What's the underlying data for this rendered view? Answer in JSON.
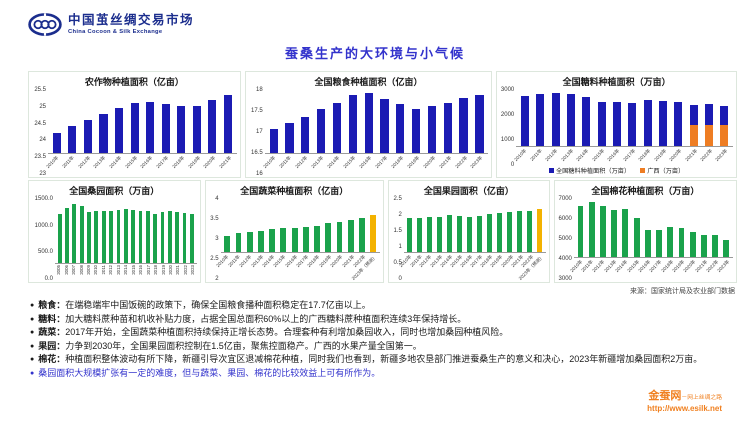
{
  "header": {
    "brand_cn": "中国茧丝绸交易市场",
    "brand_en": "China  Cocoon & Silk  Exchange"
  },
  "title": "蚕桑生产的大环境与小气候",
  "colors": {
    "blue_bar": "#1b1bb3",
    "green_bar": "#1aa24b",
    "orange_bar": "#ee7d23",
    "yellow_bar": "#f3b200",
    "title_blue": "#3333cc",
    "brand_navy": "#1b2d8d",
    "footer_orange": "#f08020"
  },
  "source_note": "来源：国家统计局及农业部门数据",
  "bullets": [
    {
      "label": "粮食：",
      "text": "在端稳端牢中国饭碗的政策下，确保全国粮食播种面积稳定在17.7亿亩以上。",
      "highlight": false
    },
    {
      "label": "糖料：",
      "text": "加大糖料蔗种苗和机收补贴力度，占据全国总面积60%以上的广西糖料蔗种植面积连续3年保持增长。",
      "highlight": false
    },
    {
      "label": "蔬菜：",
      "text": "2017年开始，全国蔬菜种植面积持续保持正增长态势。合理套种有利增加桑园收入，同时也增加桑园种植风险。",
      "highlight": false
    },
    {
      "label": "果园：",
      "text": "力争到2030年，全国果园面积控制在1.5亿亩，聚焦控面稳产。广西的水果产量全国第一。",
      "highlight": false
    },
    {
      "label": "棉花：",
      "text": "种植面积整体波动有所下降，新疆引导次宜区退减棉花种植，同时我们也看到，新疆多地农垦部门推进蚕桑生产的意义和决心，2023年新疆增加桑园面积2万亩。",
      "highlight": false
    },
    {
      "label": "",
      "text": "桑园面积大规模扩张有一定的难度，但与蔬菜、果园、棉花的比较效益上可有所作为。",
      "highlight": true
    }
  ],
  "footer": {
    "site_name": "金蚕网",
    "site_tagline": "－网上丝绸之路",
    "site_url": "http://www.esilk.net"
  },
  "chart_data": [
    {
      "type": "bar",
      "title": "农作物种植面积（亿亩）",
      "categories": [
        "2010年",
        "2011年",
        "2012年",
        "2013年",
        "2014年",
        "2015年",
        "2016年",
        "2017年",
        "2018年",
        "2019年",
        "2020年",
        "2021年"
      ],
      "values": [
        23.8,
        24.07,
        24.3,
        24.55,
        24.78,
        25.0,
        25.03,
        24.95,
        24.88,
        24.88,
        25.1,
        25.3
      ],
      "ylim": [
        23,
        25.5
      ],
      "yticks": [
        "23",
        "23.5",
        "24",
        "24.5",
        "25",
        "25.5"
      ],
      "bar_color": "#1b1bb3",
      "layout": {
        "flex": 212,
        "yaxis_width": 16,
        "xaxis_height": 20
      }
    },
    {
      "type": "bar",
      "title": "全国粮食种植面积（亿亩）",
      "categories": [
        "2010年",
        "2011年",
        "2012年",
        "2013年",
        "2014年",
        "2015年",
        "2016年",
        "2017年",
        "2018年",
        "2019年",
        "2020年",
        "2021年",
        "2022年",
        "2023年"
      ],
      "values": [
        16.75,
        16.95,
        17.15,
        17.4,
        17.6,
        17.85,
        17.9,
        17.7,
        17.55,
        17.4,
        17.5,
        17.6,
        17.75,
        17.85
      ],
      "ylim": [
        16,
        18
      ],
      "yticks": [
        "16",
        "16.5",
        "17",
        "17.5",
        "18"
      ],
      "bar_color": "#1b1bb3",
      "layout": {
        "flex": 248,
        "yaxis_width": 16,
        "xaxis_height": 20
      }
    },
    {
      "type": "stacked-bar",
      "title": "全国糖料种植面积（万亩）",
      "categories": [
        "2010年",
        "2011年",
        "2012年",
        "2013年",
        "2014年",
        "2015年",
        "2016年",
        "2017年",
        "2018年",
        "2019年",
        "2020年",
        "2021年",
        "2022年",
        "2023年"
      ],
      "values": [
        2700,
        2760,
        2840,
        2760,
        2620,
        2360,
        2340,
        2330,
        2440,
        2420,
        2380,
        2210,
        2230,
        2160
      ],
      "overlay": {
        "name": "广西（万亩）",
        "color": "#ee7d23",
        "values": [
          0,
          0,
          0,
          0,
          0,
          0,
          0,
          0,
          0,
          0,
          0,
          1100,
          1140,
          1100
        ]
      },
      "ylim": [
        0,
        3000
      ],
      "yticks": [
        "0",
        "1000",
        "2000",
        "3000"
      ],
      "bar_color": "#1b1bb3",
      "legend": [
        {
          "label": "全国糖料种植面积（万亩）",
          "color": "#1b1bb3"
        },
        {
          "label": "广西（万亩）",
          "color": "#ee7d23"
        }
      ],
      "legend_position": "bottom",
      "layout": {
        "flex": 241,
        "yaxis_width": 16,
        "xaxis_height": 18
      }
    },
    {
      "type": "bar",
      "title": "全国桑园面积（万亩）",
      "categories": [
        "2005",
        "2006",
        "2007",
        "2008",
        "2009",
        "2010",
        "2011",
        "2012",
        "2013",
        "2014",
        "2015",
        "2016",
        "2017",
        "2018",
        "2019",
        "2020",
        "2021",
        "2022",
        "2023"
      ],
      "values": [
        1160,
        1290,
        1380,
        1330,
        1200,
        1230,
        1220,
        1230,
        1245,
        1260,
        1250,
        1230,
        1210,
        1140,
        1200,
        1230,
        1200,
        1170,
        1140
      ],
      "ylim": [
        0,
        1500
      ],
      "yticks": [
        "0.0",
        "500.0",
        "1000.0",
        "1500.0"
      ],
      "bar_color": "#1aa24b",
      "xlabel_style": "vertical",
      "layout": {
        "flex": 172,
        "yaxis_width": 23,
        "xaxis_height": 15
      }
    },
    {
      "type": "bar",
      "title": "全国蔬菜种植面积（亿亩）",
      "categories": [
        "2010年",
        "2011年",
        "2012年",
        "2013年",
        "2014年",
        "2015年",
        "2016年",
        "2017年",
        "2018年",
        "2019年",
        "2020年",
        "2021年",
        "2022年",
        "2023年（预测）"
      ],
      "values": [
        2.6,
        2.7,
        2.75,
        2.8,
        2.85,
        2.9,
        2.92,
        2.95,
        3.0,
        3.08,
        3.12,
        3.2,
        3.3,
        3.4
      ],
      "ylim": [
        2,
        4
      ],
      "yticks": [
        "2",
        "2.5",
        "3",
        "3.5",
        "4"
      ],
      "bar_color": "#1aa24b",
      "bar_color_overrides": {
        "13": "#f3b200"
      },
      "layout": {
        "flex": 179,
        "yaxis_width": 12,
        "xaxis_height": 26
      }
    },
    {
      "type": "bar",
      "title": "全国果园面积（亿亩）",
      "categories": [
        "2010年",
        "2011年",
        "2012年",
        "2013年",
        "2014年",
        "2015年",
        "2016年",
        "2017年",
        "2018年",
        "2019年",
        "2020年",
        "2021年",
        "2022年",
        "2023年（预测）"
      ],
      "values": [
        1.6,
        1.62,
        1.65,
        1.67,
        1.75,
        1.68,
        1.65,
        1.7,
        1.78,
        1.85,
        1.88,
        1.92,
        1.95,
        2.02
      ],
      "ylim": [
        0,
        2.5
      ],
      "yticks": [
        "0",
        "0.5",
        "1",
        "1.5",
        "2",
        "2.5"
      ],
      "bar_color": "#1aa24b",
      "bar_color_overrides": {
        "13": "#f3b200"
      },
      "layout": {
        "flex": 161,
        "yaxis_width": 12,
        "xaxis_height": 26
      }
    },
    {
      "type": "bar",
      "title": "全国棉花种植面积（万亩）",
      "categories": [
        "2010年",
        "2011年",
        "2012年",
        "2013年",
        "2014年",
        "2015年",
        "2016年",
        "2017年",
        "2018年",
        "2019年",
        "2020年",
        "2021年",
        "2022年",
        "2023年"
      ],
      "values": [
        6550,
        6800,
        6550,
        6250,
        6300,
        5700,
        4850,
        4850,
        5050,
        5000,
        4750,
        4550,
        4500,
        4200
      ],
      "ylim": [
        3000,
        7000
      ],
      "yticks": [
        "3000",
        "4000",
        "5000",
        "6000",
        "7000"
      ],
      "bar_color": "#1aa24b",
      "layout": {
        "flex": 183,
        "yaxis_width": 16,
        "xaxis_height": 21
      }
    }
  ]
}
